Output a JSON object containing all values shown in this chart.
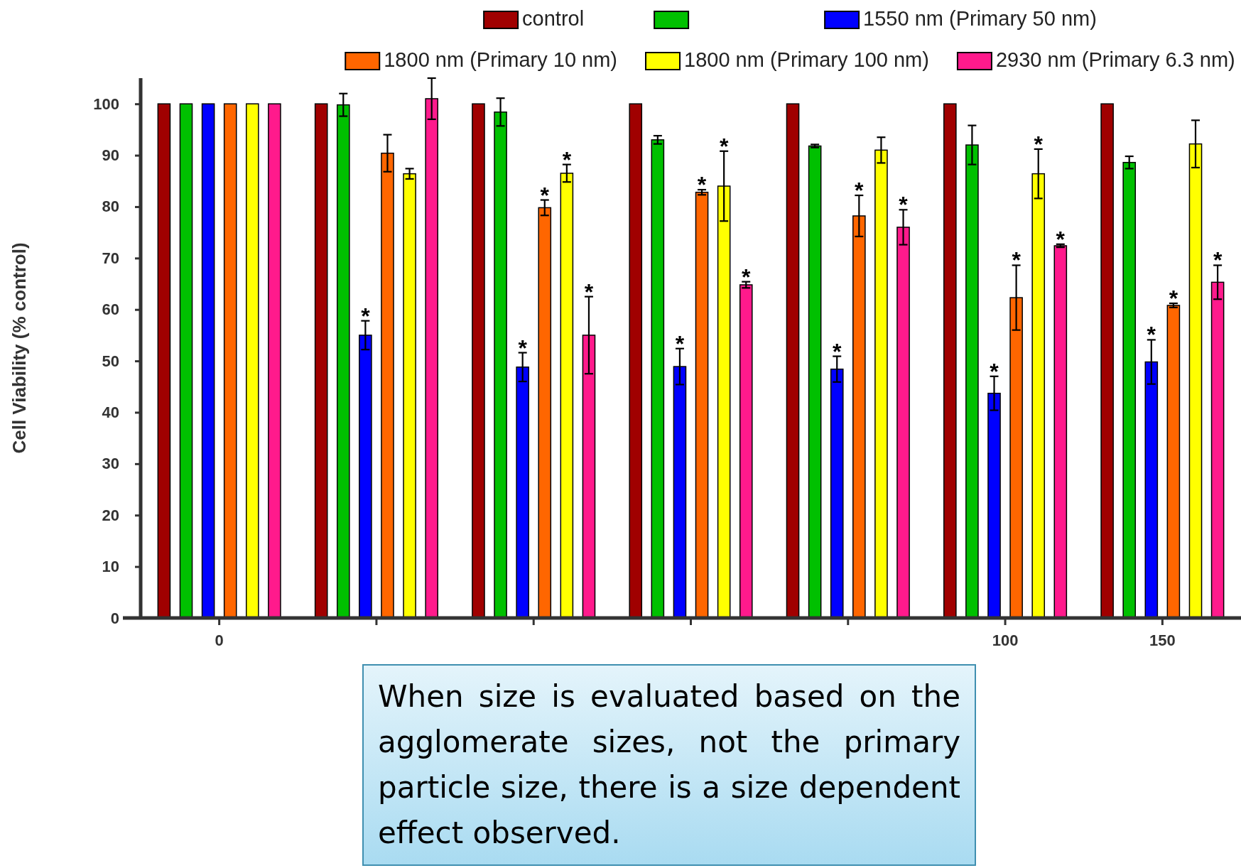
{
  "chart_data": {
    "type": "bar",
    "ylabel": "Cell Viability (% control)",
    "categories": [
      "0",
      null,
      null,
      null,
      null,
      "100",
      "150"
    ],
    "ylim": [
      0,
      105
    ],
    "yticks": [
      0,
      10,
      20,
      30,
      40,
      50,
      60,
      70,
      80,
      90,
      100
    ],
    "grid": false,
    "legend": "top",
    "series": [
      {
        "name": "control",
        "color": "#a00000",
        "values": [
          100,
          100,
          100,
          100,
          100,
          100,
          100
        ]
      },
      {
        "color": "#00c000",
        "values": [
          100,
          99.8,
          98.4,
          93,
          91.8,
          92,
          88.6
        ],
        "errors": [
          null,
          2.2,
          2.7,
          0.8,
          0.3,
          3.8,
          1.2
        ]
      },
      {
        "name": "1550 nm (Primary 50 nm)",
        "color": "#0000ff",
        "values": [
          100,
          55,
          48.8,
          48.9,
          48.4,
          43.7,
          49.8
        ],
        "errors": [
          null,
          2.8,
          2.8,
          3.5,
          2.5,
          3.3,
          4.3
        ],
        "value_labels": [
          null,
          "*",
          "*",
          "*",
          "*",
          "*",
          "*"
        ]
      },
      {
        "name": "1800 nm (Primary 10 nm)",
        "color": "#ff6600",
        "values": [
          100,
          90.4,
          79.8,
          82.8,
          78.2,
          62.3,
          60.8
        ],
        "errors": [
          null,
          3.6,
          1.5,
          0.5,
          4,
          6.3,
          0.4
        ],
        "value_labels": [
          null,
          null,
          "*",
          "*",
          "*",
          "*",
          "*"
        ]
      },
      {
        "name": "1800 nm (Primary 100 nm)",
        "color": "#ffff00",
        "values": [
          100,
          86.4,
          86.5,
          84,
          91,
          86.4,
          92.2
        ],
        "errors": [
          null,
          1,
          1.7,
          6.8,
          2.5,
          4.8,
          4.6
        ],
        "value_labels": [
          null,
          null,
          "*",
          "*",
          null,
          "*",
          null
        ]
      },
      {
        "name": "2930 nm (Primary 6.3 nm)",
        "color": "#ff1a8c",
        "values": [
          100,
          101,
          55,
          64.8,
          76,
          72.4,
          65.3
        ],
        "errors": [
          null,
          4,
          7.5,
          0.6,
          3.4,
          0.3,
          3.3
        ],
        "value_labels": [
          null,
          null,
          "*",
          "*",
          "*",
          "*",
          "*"
        ]
      }
    ],
    "annotations": [
      "When size is evaluated based on the agglomerate sizes, not the primary particle size, there is a size dependent effect observed."
    ]
  }
}
